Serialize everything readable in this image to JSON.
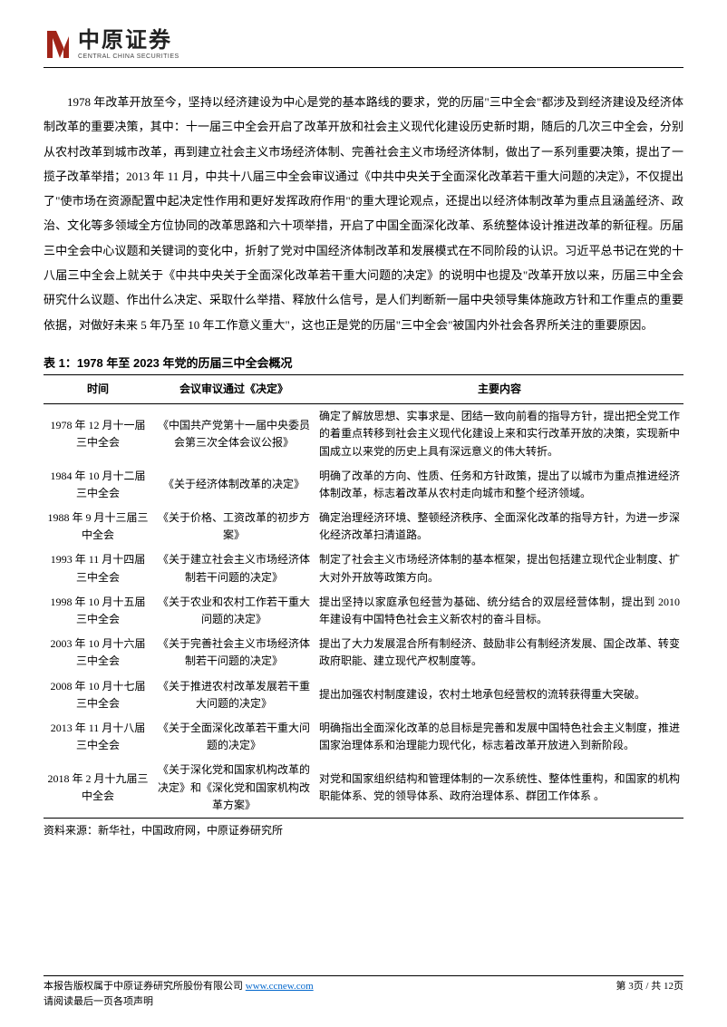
{
  "logo": {
    "cn": "中原证券",
    "en": "CENTRAL CHINA SECURITIES",
    "mark_fill": "#a02418"
  },
  "paragraph": "1978 年改革开放至今，坚持以经济建设为中心是党的基本路线的要求，党的历届\"三中全会\"都涉及到经济建设及经济体制改革的重要决策，其中：十一届三中全会开启了改革开放和社会主义现代化建设历史新时期，随后的几次三中全会，分别从农村改革到城市改革，再到建立社会主义市场经济体制、完善社会主义市场经济体制，做出了一系列重要决策，提出了一揽子改革举措；2013 年 11 月，中共十八届三中全会审议通过《中共中央关于全面深化改革若干重大问题的决定》，不仅提出了\"使市场在资源配置中起决定性作用和更好发挥政府作用\"的重大理论观点，还提出以经济体制改革为重点且涵盖经济、政治、文化等多领域全方位协同的改革思路和六十项举措，开启了中国全面深化改革、系统整体设计推进改革的新征程。历届三中全会中心议题和关键词的变化中，折射了党对中国经济体制改革和发展模式在不同阶段的认识。习近平总书记在党的十八届三中全会上就关于《中共中央关于全面深化改革若干重大问题的决定》的说明中也提及\"改革开放以来，历届三中全会研究什么议题、作出什么决定、采取什么举措、释放什么信号，是人们判断新一届中央领导集体施政方针和工作重点的重要依据，对做好未来 5 年乃至 10 年工作意义重大\"，这也正是党的历届\"三中全会\"被国内外社会各界所关注的重要原因。",
  "table": {
    "title": "表 1：1978 年至 2023 年党的历届三中全会概况",
    "columns": [
      "时间",
      "会议审议通过《决定》",
      "主要内容"
    ],
    "rows": [
      [
        "1978 年 12 月十一届三中全会",
        "《中国共产党第十一届中央委员会第三次全体会议公报》",
        "确定了解放思想、实事求是、团结一致向前看的指导方针，提出把全党工作的着重点转移到社会主义现代化建设上来和实行改革开放的决策，实现新中国成立以来党的历史上具有深远意义的伟大转折。"
      ],
      [
        "1984 年 10 月十二届三中全会",
        "《关于经济体制改革的决定》",
        "明确了改革的方向、性质、任务和方针政策，提出了以城市为重点推进经济体制改革，标志着改革从农村走向城市和整个经济领域。"
      ],
      [
        "1988 年 9 月十三届三中全会",
        "《关于价格、工资改革的初步方案》",
        "确定治理经济环境、整顿经济秩序、全面深化改革的指导方针，为进一步深化经济改革扫清道路。"
      ],
      [
        "1993 年 11 月十四届三中全会",
        "《关于建立社会主义市场经济体制若干问题的决定》",
        "制定了社会主义市场经济体制的基本框架，提出包括建立现代企业制度、扩大对外开放等政策方向。"
      ],
      [
        "1998 年 10 月十五届三中全会",
        "《关于农业和农村工作若干重大问题的决定》",
        "提出坚持以家庭承包经营为基础、统分结合的双层经营体制，提出到 2010 年建设有中国特色社会主义新农村的奋斗目标。"
      ],
      [
        "2003 年 10 月十六届三中全会",
        "《关于完善社会主义市场经济体制若干问题的决定》",
        "提出了大力发展混合所有制经济、鼓励非公有制经济发展、国企改革、转变政府职能、建立现代产权制度等。"
      ],
      [
        "2008 年 10 月十七届三中全会",
        "《关于推进农村改革发展若干重大问题的决定》",
        "提出加强农村制度建设，农村土地承包经营权的流转获得重大突破。"
      ],
      [
        "2013 年 11 月十八届三中全会",
        "《关于全面深化改革若干重大问题的决定》",
        "明确指出全面深化改革的总目标是完善和发展中国特色社会主义制度，推进国家治理体系和治理能力现代化，标志着改革开放进入到新阶段。"
      ],
      [
        "2018 年 2 月十九届三中全会",
        "《关于深化党和国家机构改革的决定》和《深化党和国家机构改革方案》",
        "对党和国家组织结构和管理体制的一次系统性、整体性重构，和国家的机构职能体系、党的领导体系、政府治理体系、群团工作体系 。"
      ]
    ],
    "source": "资料来源：新华社，中国政府网，中原证券研究所"
  },
  "footer": {
    "line1_prefix": "本报告版权属于中原证券研究所股份有限公司 ",
    "url": "www.ccnew.com",
    "line2": "请阅读最后一页各项声明",
    "page_prefix": "第 ",
    "page_num": "3",
    "page_mid": "页 / 共 ",
    "page_total": "12",
    "page_suffix": "页"
  }
}
